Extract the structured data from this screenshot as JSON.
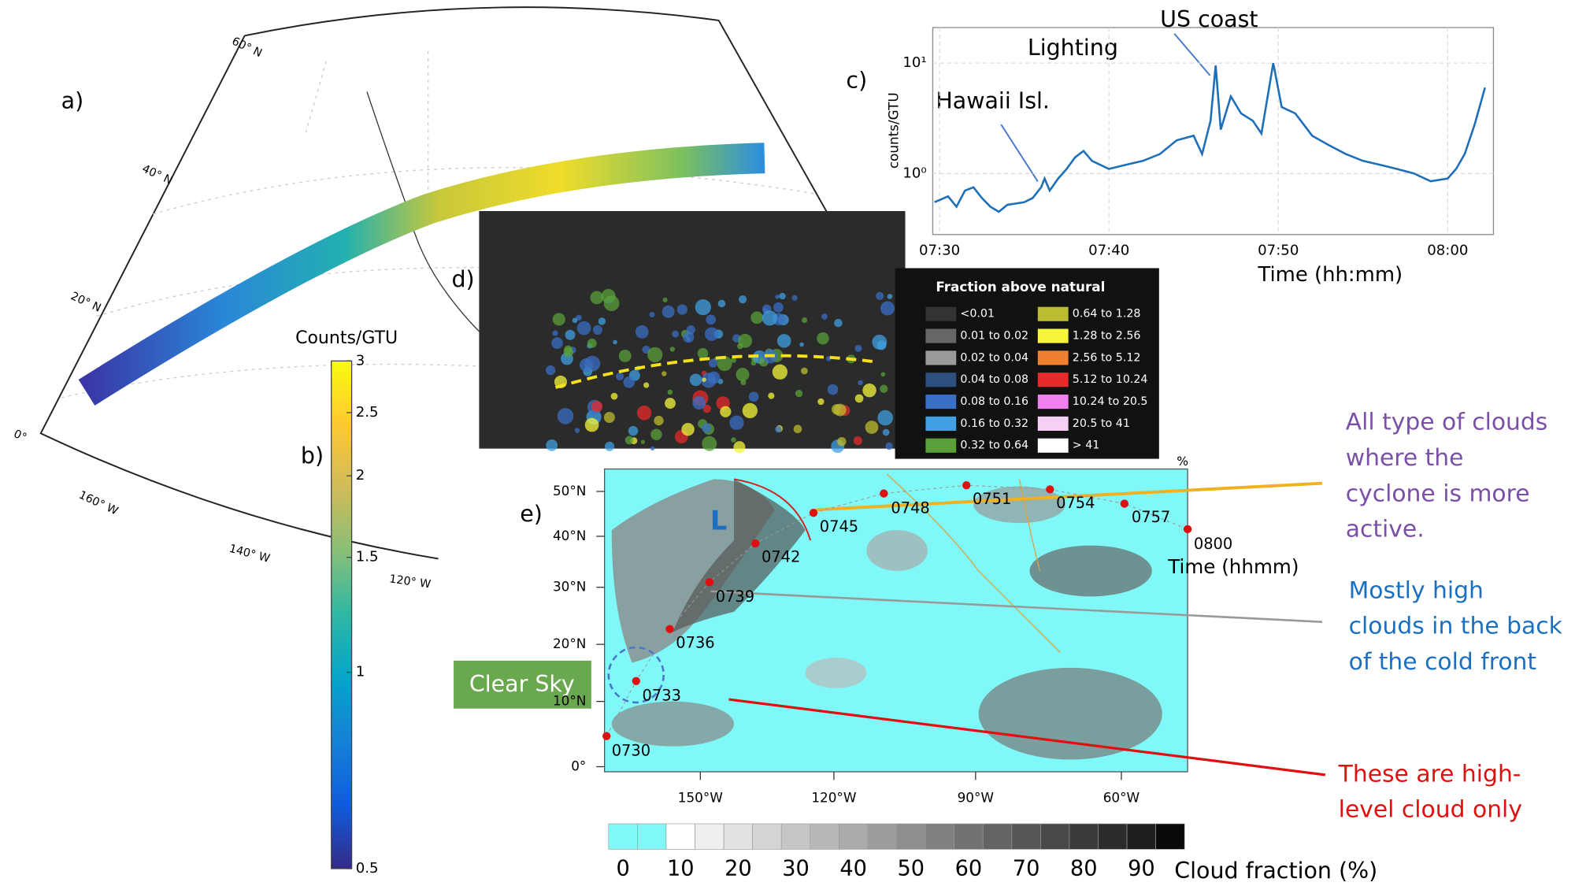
{
  "panels": {
    "a": {
      "label": "a)",
      "lat_labels": [
        "60° N",
        "40° N",
        "20° N",
        "0°"
      ],
      "lon_labels": [
        "160° W",
        "140° W",
        "120° W"
      ]
    },
    "b": {
      "label": "b)",
      "title": "Counts/GTU",
      "range": [
        0.5,
        3
      ],
      "log": true,
      "ticks": [
        0.5,
        1,
        1.5,
        2,
        2.5,
        3
      ],
      "colors": [
        "#352a87",
        "#0f5cdd",
        "#1481d6",
        "#06a4ca",
        "#2eb7a4",
        "#87bf77",
        "#d1bb59",
        "#fec832",
        "#f9fb0e"
      ]
    },
    "d": {
      "label": "d)",
      "legend_title": "Fraction above natural",
      "legend": [
        {
          "label": "<0.01",
          "color": "#333333"
        },
        {
          "label": "0.01 to 0.02",
          "color": "#666666"
        },
        {
          "label": "0.02 to 0.04",
          "color": "#9a9a9a"
        },
        {
          "label": "0.04 to 0.08",
          "color": "#2d4f80"
        },
        {
          "label": "0.08 to 0.16",
          "color": "#3a6fc4"
        },
        {
          "label": "0.16 to 0.32",
          "color": "#40a0e2"
        },
        {
          "label": "0.32 to 0.64",
          "color": "#5aa03a"
        },
        {
          "label": "0.64 to 1.28",
          "color": "#bcbc30"
        },
        {
          "label": "1.28 to 2.56",
          "color": "#f5f53a"
        },
        {
          "label": "2.56 to 5.12",
          "color": "#f08030"
        },
        {
          "label": "5.12 to 10.24",
          "color": "#e82a2a"
        },
        {
          "label": "10.24 to 20.5",
          "color": "#f080f0"
        },
        {
          "label": "20.5 to 41",
          "color": "#f5d0f5"
        },
        {
          "label": "> 41",
          "color": "#ffffff"
        }
      ]
    },
    "e": {
      "label": "e)",
      "unit": "%",
      "lat_labels": [
        "50°N",
        "40°N",
        "30°N",
        "20°N",
        "10°N",
        "0°"
      ],
      "lon_labels": [
        "150°W",
        "120°W",
        "90°W",
        "60°W"
      ],
      "track": [
        "0730",
        "0733",
        "0736",
        "0739",
        "0742",
        "0745",
        "0748",
        "0751",
        "0754",
        "0757",
        "0800"
      ],
      "cyclone": "L",
      "time_label": "Time (hhmm)",
      "clear_sky": "Clear Sky",
      "colorbar_title": "Cloud fraction (%)",
      "colorbar_ticks": [
        0,
        10,
        20,
        30,
        40,
        50,
        60,
        70,
        80,
        90
      ],
      "colorbar_colors": [
        "#80f8f8",
        "#80f8f8",
        "#ffffff",
        "#efefef",
        "#e2e2e2",
        "#d4d4d4",
        "#c6c6c6",
        "#b8b8b8",
        "#aaaaaa",
        "#9c9c9c",
        "#8e8e8e",
        "#808080",
        "#727272",
        "#646464",
        "#565656",
        "#484848",
        "#3a3a3a",
        "#2c2c2c",
        "#1e1e1e",
        "#0a0a0a"
      ]
    },
    "notes": [
      {
        "color": "#7a4fa8",
        "lines": [
          "All type of clouds",
          "where the",
          "cyclone is more",
          "active."
        ]
      },
      {
        "color": "#1a6fc0",
        "lines": [
          "Mostly high",
          "clouds in the back",
          "of the cold front"
        ]
      },
      {
        "color": "#e01010",
        "lines": [
          "These are high-",
          "level cloud only"
        ]
      }
    ]
  },
  "chart_data": {
    "type": "line",
    "label": "c)",
    "y_label": "counts/GTU",
    "x_label": "Time (hh:mm)",
    "color": "#1f6fb8",
    "log_y": true,
    "grid": true,
    "annotations": [
      "Hawaii Isl.",
      "Lighting",
      "US coast"
    ],
    "x": [
      449.7,
      450.5,
      451,
      451.5,
      452,
      452.5,
      453,
      453.5,
      454,
      455,
      455.5,
      456,
      456.2,
      456.5,
      457,
      457.5,
      458,
      458.5,
      459,
      460,
      461,
      462,
      463,
      464,
      465,
      465.5,
      466,
      466.3,
      466.6,
      467.2,
      467.8,
      468.5,
      469,
      469.7,
      470.2,
      471,
      472,
      473,
      474,
      475,
      476,
      477,
      478,
      479,
      480,
      480.5,
      481,
      481.6,
      482.2
    ],
    "values": [
      0.55,
      0.62,
      0.5,
      0.7,
      0.75,
      0.6,
      0.5,
      0.45,
      0.52,
      0.55,
      0.6,
      0.75,
      0.9,
      0.7,
      0.9,
      1.1,
      1.4,
      1.6,
      1.3,
      1.1,
      1.2,
      1.3,
      1.5,
      2,
      2.2,
      1.5,
      3,
      9.5,
      2.5,
      5,
      3.5,
      3,
      2.3,
      10,
      4,
      3.5,
      2.2,
      1.8,
      1.5,
      1.3,
      1.2,
      1.1,
      1,
      0.85,
      0.9,
      1.1,
      1.5,
      2.8,
      6
    ],
    "xlim": [
      449.6,
      482.7
    ],
    "ylim": [
      0.28,
      21
    ],
    "xticks": [
      {
        "value": 450,
        "label": "07:30"
      },
      {
        "value": 460,
        "label": "07:40"
      },
      {
        "value": 470,
        "label": "07:50"
      },
      {
        "value": 480,
        "label": "08:00"
      }
    ],
    "yticks": [
      {
        "value": 1,
        "label": "10⁰"
      },
      {
        "value": 10,
        "label": "10¹"
      }
    ]
  }
}
